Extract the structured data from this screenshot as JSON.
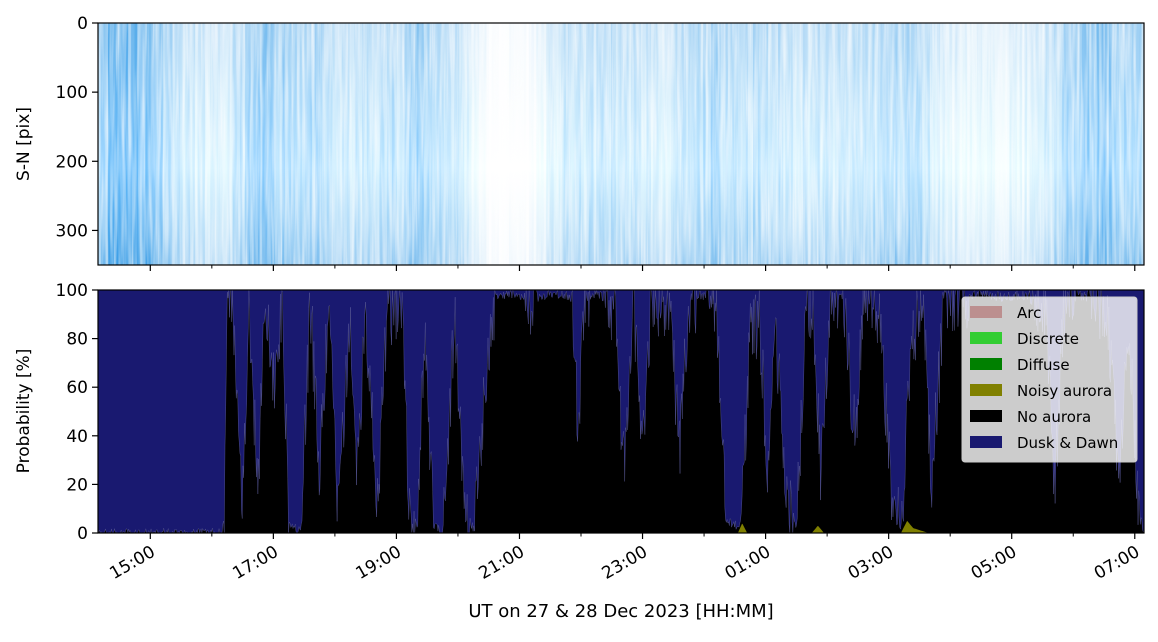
{
  "chart_data": [
    {
      "type": "heatmap",
      "ylabel": "S-N [pix]",
      "ylim": [
        350,
        0
      ],
      "y_ticks": [
        "0",
        "100",
        "200",
        "300"
      ],
      "y_tick_values": [
        0,
        100,
        200,
        300
      ],
      "colormap": [
        "#ffffff",
        "#8cc8f0",
        "#3b9ee6"
      ],
      "brightness_profile": [
        {
          "t": 0.0,
          "v": 0.55
        },
        {
          "t": 0.3,
          "v": 0.85
        },
        {
          "t": 0.8,
          "v": 0.7
        },
        {
          "t": 1.4,
          "v": 0.3
        },
        {
          "t": 2.0,
          "v": 0.2
        },
        {
          "t": 2.6,
          "v": 0.55
        },
        {
          "t": 3.2,
          "v": 0.5
        },
        {
          "t": 4.0,
          "v": 0.3
        },
        {
          "t": 4.6,
          "v": 0.35
        },
        {
          "t": 5.2,
          "v": 0.5
        },
        {
          "t": 5.8,
          "v": 0.35
        },
        {
          "t": 6.4,
          "v": 0.02
        },
        {
          "t": 7.0,
          "v": 0.05
        },
        {
          "t": 7.6,
          "v": 0.3
        },
        {
          "t": 8.4,
          "v": 0.35
        },
        {
          "t": 9.2,
          "v": 0.25
        },
        {
          "t": 10.0,
          "v": 0.45
        },
        {
          "t": 11.0,
          "v": 0.35
        },
        {
          "t": 12.0,
          "v": 0.3
        },
        {
          "t": 13.2,
          "v": 0.45
        },
        {
          "t": 13.8,
          "v": 0.2
        },
        {
          "t": 14.4,
          "v": 0.15
        },
        {
          "t": 15.2,
          "v": 0.2
        },
        {
          "t": 16.0,
          "v": 0.55
        },
        {
          "t": 16.4,
          "v": 0.6
        },
        {
          "t": 17.0,
          "v": 0.4
        }
      ]
    },
    {
      "type": "area",
      "ylabel": "Probability [%]",
      "xlabel": "UT on 27 & 28 Dec 2023 [HH:MM]",
      "ylim": [
        0,
        100
      ],
      "y_ticks": [
        "0",
        "20",
        "40",
        "60",
        "80",
        "100"
      ],
      "y_tick_values": [
        0,
        20,
        40,
        60,
        80,
        100
      ],
      "x_start": "14:09",
      "x_end": "07:09",
      "x_ticks": [
        "15:00",
        "17:00",
        "19:00",
        "21:00",
        "23:00",
        "01:00",
        "03:00",
        "05:00",
        "07:00"
      ],
      "x_tick_hours": [
        0.85,
        2.85,
        4.85,
        6.85,
        8.85,
        10.85,
        12.85,
        14.85,
        16.85
      ],
      "minor_tick_hours": [
        1.85,
        3.85,
        5.85,
        7.85,
        9.85,
        11.85,
        13.85,
        15.85
      ],
      "legend_position": "upper right",
      "series": [
        {
          "name": "Arc",
          "color": "#bc8f8f"
        },
        {
          "name": "Discrete",
          "color": "#32cd32"
        },
        {
          "name": "Diffuse",
          "color": "#008000"
        },
        {
          "name": "Noisy aurora",
          "color": "#808000"
        },
        {
          "name": "No aurora",
          "color": "#000000"
        },
        {
          "name": "Dusk & Dawn",
          "color": "#191970"
        }
      ],
      "no_aurora_pct": [
        {
          "t": 0.0,
          "v": 0
        },
        {
          "t": 2.0,
          "v": 0
        },
        {
          "t": 2.05,
          "v": 5
        },
        {
          "t": 2.1,
          "v": 98
        },
        {
          "t": 2.2,
          "v": 92
        },
        {
          "t": 2.35,
          "v": 15
        },
        {
          "t": 2.45,
          "v": 90
        },
        {
          "t": 2.6,
          "v": 20
        },
        {
          "t": 2.7,
          "v": 95
        },
        {
          "t": 2.85,
          "v": 60
        },
        {
          "t": 3.0,
          "v": 98
        },
        {
          "t": 3.1,
          "v": 5
        },
        {
          "t": 3.3,
          "v": 0
        },
        {
          "t": 3.45,
          "v": 95
        },
        {
          "t": 3.6,
          "v": 25
        },
        {
          "t": 3.75,
          "v": 92
        },
        {
          "t": 3.9,
          "v": 10
        },
        {
          "t": 4.1,
          "v": 85
        },
        {
          "t": 4.2,
          "v": 25
        },
        {
          "t": 4.35,
          "v": 90
        },
        {
          "t": 4.55,
          "v": 10
        },
        {
          "t": 4.7,
          "v": 95
        },
        {
          "t": 4.8,
          "v": 90
        },
        {
          "t": 4.95,
          "v": 98
        },
        {
          "t": 5.05,
          "v": 10
        },
        {
          "t": 5.2,
          "v": 3
        },
        {
          "t": 5.3,
          "v": 85
        },
        {
          "t": 5.45,
          "v": 4
        },
        {
          "t": 5.6,
          "v": 0
        },
        {
          "t": 5.8,
          "v": 88
        },
        {
          "t": 5.95,
          "v": 10
        },
        {
          "t": 6.1,
          "v": 2
        },
        {
          "t": 6.3,
          "v": 60
        },
        {
          "t": 6.45,
          "v": 97
        },
        {
          "t": 6.8,
          "v": 99
        },
        {
          "t": 7.0,
          "v": 96
        },
        {
          "t": 7.4,
          "v": 99
        },
        {
          "t": 7.7,
          "v": 97
        },
        {
          "t": 7.8,
          "v": 40
        },
        {
          "t": 7.9,
          "v": 95
        },
        {
          "t": 8.1,
          "v": 99
        },
        {
          "t": 8.4,
          "v": 93
        },
        {
          "t": 8.55,
          "v": 25
        },
        {
          "t": 8.7,
          "v": 95
        },
        {
          "t": 8.85,
          "v": 40
        },
        {
          "t": 9.0,
          "v": 97
        },
        {
          "t": 9.3,
          "v": 92
        },
        {
          "t": 9.45,
          "v": 35
        },
        {
          "t": 9.6,
          "v": 95
        },
        {
          "t": 9.8,
          "v": 98
        },
        {
          "t": 10.05,
          "v": 95
        },
        {
          "t": 10.2,
          "v": 5
        },
        {
          "t": 10.45,
          "v": 2
        },
        {
          "t": 10.6,
          "v": 80
        },
        {
          "t": 10.75,
          "v": 90
        },
        {
          "t": 10.9,
          "v": 15
        },
        {
          "t": 11.0,
          "v": 92
        },
        {
          "t": 11.2,
          "v": 10
        },
        {
          "t": 11.35,
          "v": 3
        },
        {
          "t": 11.5,
          "v": 85
        },
        {
          "t": 11.6,
          "v": 96
        },
        {
          "t": 11.75,
          "v": 20
        },
        {
          "t": 11.9,
          "v": 95
        },
        {
          "t": 12.1,
          "v": 98
        },
        {
          "t": 12.3,
          "v": 40
        },
        {
          "t": 12.45,
          "v": 97
        },
        {
          "t": 12.7,
          "v": 92
        },
        {
          "t": 12.9,
          "v": 15
        },
        {
          "t": 13.05,
          "v": 2
        },
        {
          "t": 13.25,
          "v": 80
        },
        {
          "t": 13.4,
          "v": 96
        },
        {
          "t": 13.55,
          "v": 20
        },
        {
          "t": 13.75,
          "v": 97
        },
        {
          "t": 14.0,
          "v": 95
        },
        {
          "t": 14.3,
          "v": 99
        },
        {
          "t": 14.7,
          "v": 97
        },
        {
          "t": 15.0,
          "v": 98
        },
        {
          "t": 15.4,
          "v": 95
        },
        {
          "t": 15.55,
          "v": 20
        },
        {
          "t": 15.7,
          "v": 94
        },
        {
          "t": 16.0,
          "v": 98
        },
        {
          "t": 16.4,
          "v": 93
        },
        {
          "t": 16.6,
          "v": 20
        },
        {
          "t": 16.75,
          "v": 85
        },
        {
          "t": 16.9,
          "v": 10
        },
        {
          "t": 17.0,
          "v": 0
        }
      ],
      "noisy_aurora_pct": [
        {
          "t": 0.0,
          "v": 0
        },
        {
          "t": 10.4,
          "v": 0
        },
        {
          "t": 10.47,
          "v": 4
        },
        {
          "t": 10.55,
          "v": 0
        },
        {
          "t": 11.6,
          "v": 0
        },
        {
          "t": 11.7,
          "v": 3
        },
        {
          "t": 11.8,
          "v": 0
        },
        {
          "t": 13.05,
          "v": 0
        },
        {
          "t": 13.15,
          "v": 5
        },
        {
          "t": 13.25,
          "v": 2
        },
        {
          "t": 13.5,
          "v": 0
        },
        {
          "t": 17.0,
          "v": 0
        }
      ]
    }
  ]
}
